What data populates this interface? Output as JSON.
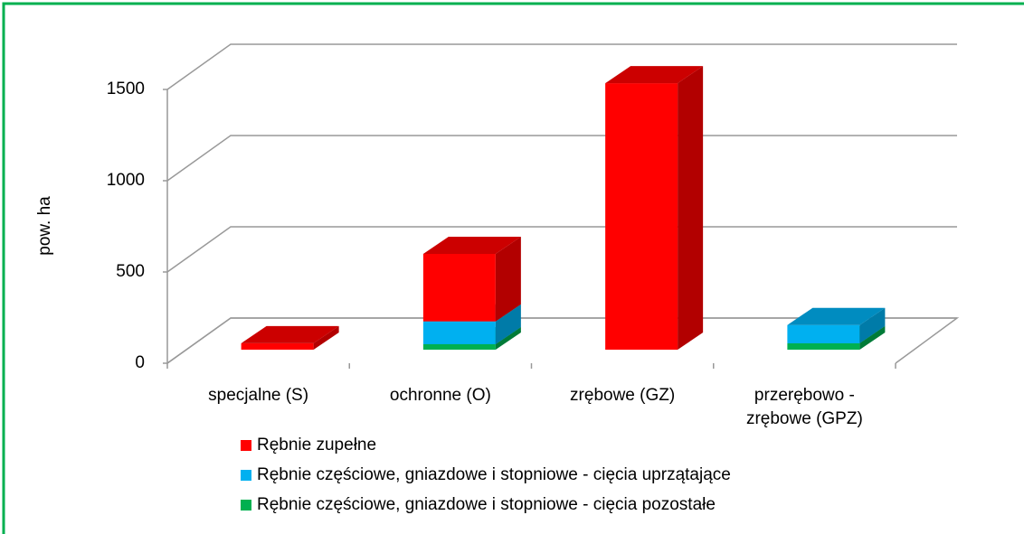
{
  "chart_data": {
    "type": "bar3d_stacked",
    "y_label": "pow. ha",
    "categories": [
      "specjalne (S)",
      "ochronne (O)",
      "zrębowe (GZ)",
      "przerębowo - zrębowe (GPZ)"
    ],
    "series": [
      {
        "name": "Rębnie zupełne",
        "color": "#ff0000",
        "values": [
          35,
          370,
          1460,
          0
        ]
      },
      {
        "name": "Rębnie częściowe, gniazdowe i stopniowe - cięcia uprzątające",
        "color": "#00b0f0",
        "values": [
          0,
          125,
          0,
          100
        ]
      },
      {
        "name": "Rębnie częściowe, gniazdowe i stopniowe - cięcia pozostałe",
        "color": "#00b050",
        "values": [
          0,
          30,
          0,
          35
        ]
      }
    ],
    "ylim": [
      0,
      1500
    ],
    "yticks": [
      0,
      500,
      1000,
      1500
    ],
    "grid": true,
    "stacked": true
  }
}
